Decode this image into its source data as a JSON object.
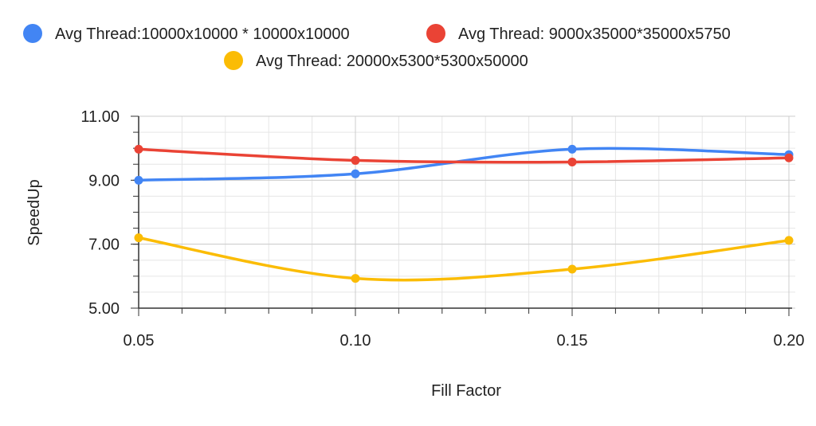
{
  "chart_data": {
    "type": "line",
    "title": "",
    "xlabel": "Fill Factor",
    "ylabel": "SpeedUp",
    "x": [
      0.05,
      0.1,
      0.15,
      0.2
    ],
    "x_tick_labels": [
      "0.05",
      "0.10",
      "0.15",
      "0.20"
    ],
    "y_tick_labels": [
      "5.00",
      "7.00",
      "9.00",
      "11.00"
    ],
    "y_ticks": [
      5,
      7,
      9,
      11
    ],
    "xlim": [
      0.05,
      0.2
    ],
    "ylim": [
      5,
      11
    ],
    "grid": true,
    "smooth": true,
    "legend_position": "top",
    "series": [
      {
        "name": "Avg Thread:10000x10000 * 10000x10000",
        "color": "#4285F4",
        "values": [
          9.0,
          9.2,
          9.97,
          9.8
        ]
      },
      {
        "name": "Avg Thread: 9000x35000*35000x5750",
        "color": "#EA4335",
        "values": [
          9.97,
          9.62,
          9.57,
          9.7
        ]
      },
      {
        "name": "Avg Thread: 20000x5300*5300x50000",
        "color": "#FBBC04",
        "values": [
          7.2,
          5.93,
          6.22,
          7.12
        ]
      }
    ]
  }
}
